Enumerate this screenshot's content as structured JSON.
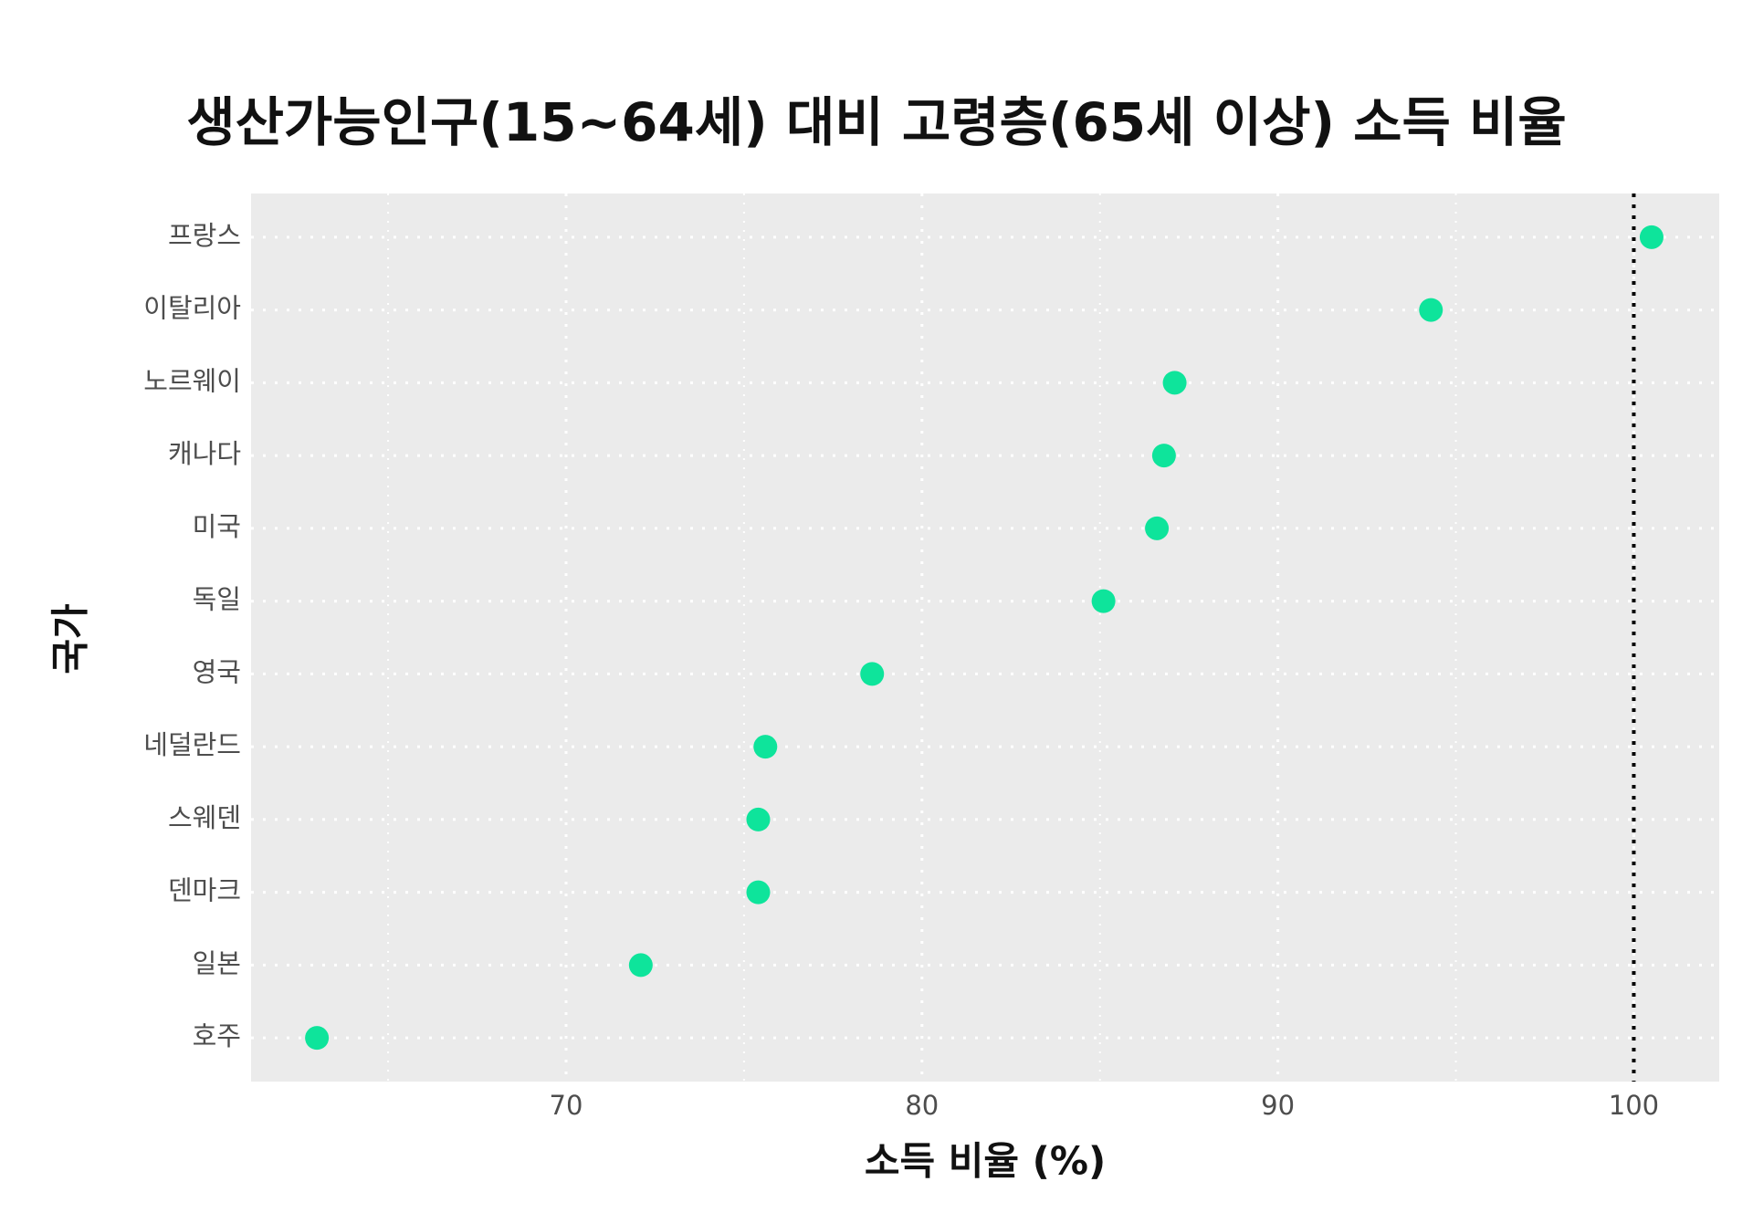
{
  "chart_data": {
    "type": "dot",
    "title": "생산가능인구(15~64세) 대비 고령층(65세 이상) 소득 비율",
    "x_label": "소득 비율 (%)",
    "y_label": "국가",
    "categories": [
      "프랑스",
      "이탈리아",
      "노르웨이",
      "캐나다",
      "미국",
      "독일",
      "영국",
      "네덜란드",
      "스웨덴",
      "덴마크",
      "일본",
      "호주"
    ],
    "values": [
      100.5,
      94.3,
      87.1,
      86.8,
      86.6,
      85.1,
      78.6,
      75.6,
      75.4,
      75.4,
      72.1,
      63.0
    ],
    "color": "#0ee49b",
    "xlim": [
      61.15,
      102.4
    ],
    "xticks": [
      70,
      80,
      90,
      100
    ],
    "xminor": [
      65,
      75,
      85,
      95
    ],
    "reference_line": 100,
    "grid": true
  }
}
